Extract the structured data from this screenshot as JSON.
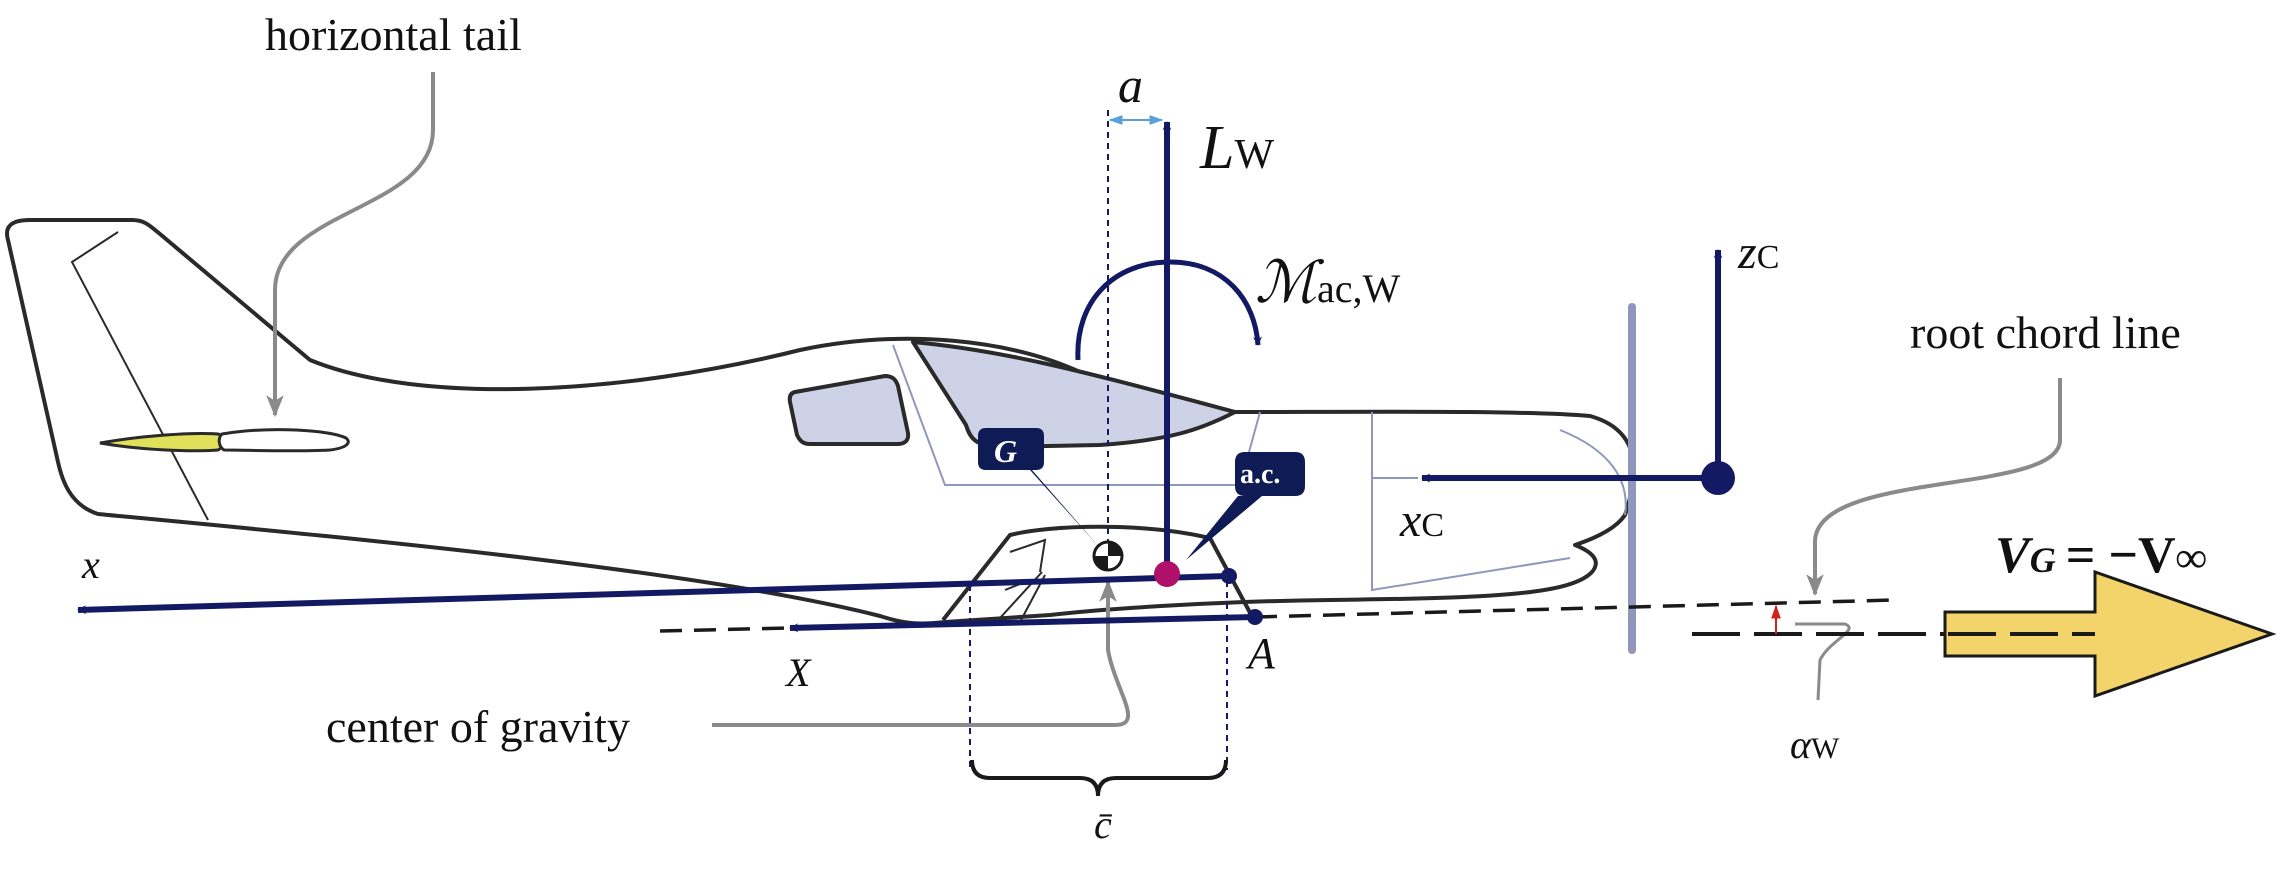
{
  "labels": {
    "horizontal_tail": "horizontal tail",
    "center_of_gravity": "center of gravity",
    "root_chord_line": "root chord line",
    "a": "a",
    "L": "L",
    "L_sub": "W",
    "M": "ℳ",
    "M_sub": "ac,W",
    "zc": "z",
    "zc_sub": "C",
    "xc": "x",
    "xc_sub": "C",
    "x": "x",
    "X": "X",
    "A": "A",
    "cbar": "c̄",
    "G_callout": "G",
    "ac_callout": "a.c.",
    "alpha": "α",
    "alpha_sub": "W",
    "V_G": "V",
    "V_G_sub": "G",
    "V_eq": "= −V",
    "V_inf": "∞"
  },
  "colors": {
    "navy": "#131a63",
    "outline": "#2a2a2a",
    "canopy": "#cdd2e6",
    "tail_fill": "#e0e05a",
    "arrow_fill": "#f2d46a",
    "grey_leader": "#8a8a8a",
    "cg_point": "#b0106a",
    "prop": "#8f97bd",
    "dim_blue": "#5aa0d8",
    "alpha_red": "#d42020"
  }
}
